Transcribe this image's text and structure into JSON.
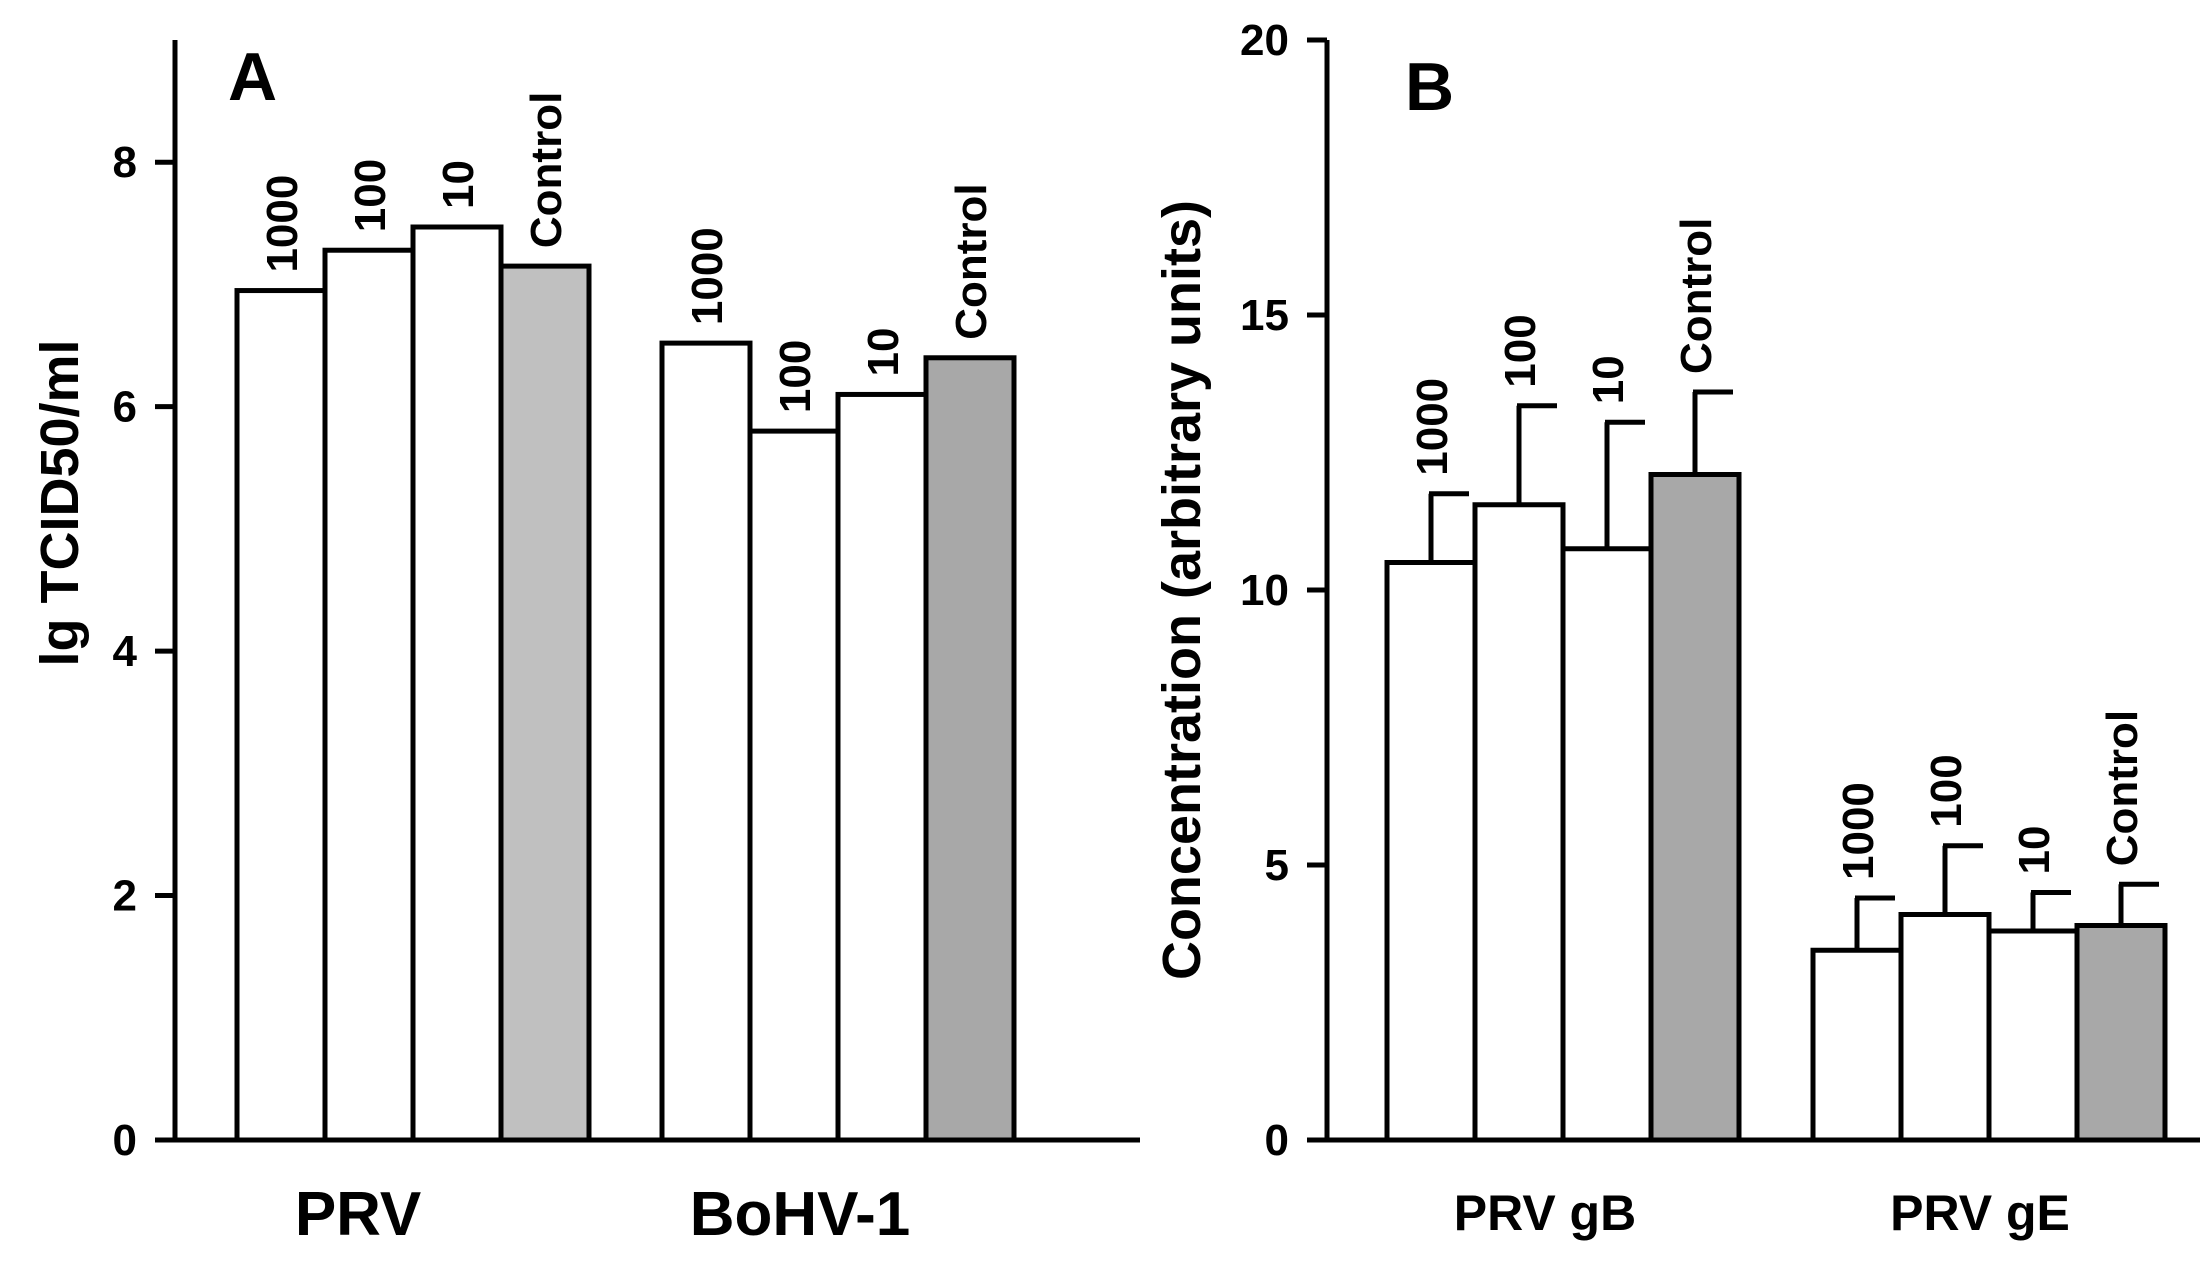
{
  "chart_data": [
    {
      "type": "bar",
      "panel": "A",
      "ylabel": "lg TCID50/ml",
      "xlabel": "",
      "ylim": [
        0,
        9
      ],
      "yticks": [
        0,
        2,
        4,
        6,
        8
      ],
      "groups": [
        {
          "label": "PRV",
          "bars": [
            {
              "label": "1000",
              "value": 6.95,
              "fill": "#ffffff"
            },
            {
              "label": "100",
              "value": 7.28,
              "fill": "#ffffff"
            },
            {
              "label": "10",
              "value": 7.47,
              "fill": "#ffffff"
            },
            {
              "label": "Control",
              "value": 7.15,
              "fill": "#c0c0c0"
            }
          ]
        },
        {
          "label": "BoHV-1",
          "bars": [
            {
              "label": "1000",
              "value": 6.52,
              "fill": "#ffffff"
            },
            {
              "label": "100",
              "value": 5.8,
              "fill": "#ffffff"
            },
            {
              "label": "10",
              "value": 6.1,
              "fill": "#ffffff"
            },
            {
              "label": "Control",
              "value": 6.4,
              "fill": "#a8a8a8"
            }
          ]
        }
      ]
    },
    {
      "type": "bar",
      "panel": "B",
      "ylabel": "Concentration (arbitrary units)",
      "xlabel": "",
      "ylim": [
        0,
        20
      ],
      "yticks": [
        0,
        5,
        10,
        15,
        20
      ],
      "groups": [
        {
          "label": "PRV gB",
          "bars": [
            {
              "label": "1000",
              "value": 10.5,
              "error": 1.25,
              "fill": "#ffffff"
            },
            {
              "label": "100",
              "value": 11.55,
              "error": 1.8,
              "fill": "#ffffff"
            },
            {
              "label": "10",
              "value": 10.75,
              "error": 2.3,
              "fill": "#ffffff"
            },
            {
              "label": "Control",
              "value": 12.1,
              "error": 1.5,
              "fill": "#a8a8a8"
            }
          ]
        },
        {
          "label": "PRV gE",
          "bars": [
            {
              "label": "1000",
              "value": 3.45,
              "error": 0.95,
              "fill": "#ffffff"
            },
            {
              "label": "100",
              "value": 4.1,
              "error": 1.25,
              "fill": "#ffffff"
            },
            {
              "label": "10",
              "value": 3.8,
              "error": 0.7,
              "fill": "#ffffff"
            },
            {
              "label": "Control",
              "value": 3.9,
              "error": 0.75,
              "fill": "#a8a8a8"
            }
          ]
        }
      ]
    }
  ]
}
